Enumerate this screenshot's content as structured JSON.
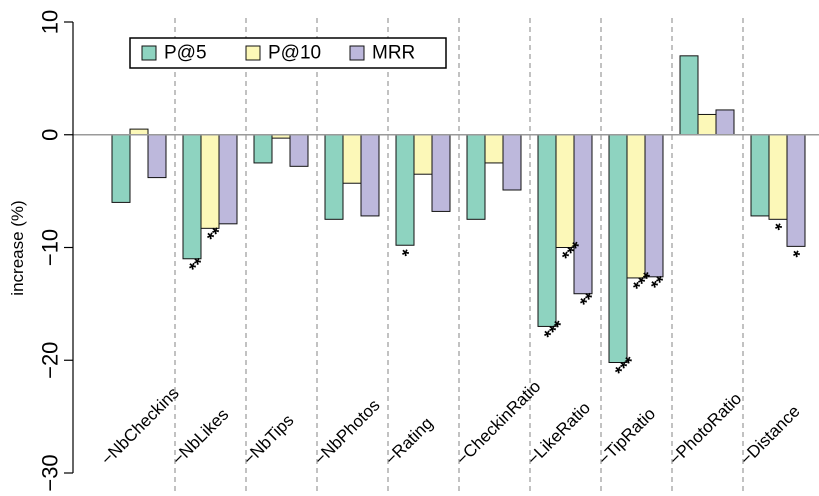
{
  "chart_data": {
    "type": "bar",
    "ylabel": "increase (%)",
    "ylim": [
      -30,
      10
    ],
    "yticks": [
      10,
      0,
      -10,
      -20,
      -30
    ],
    "categories": [
      "−NbCheckins",
      "−NbLikes",
      "−NbTips",
      "−NbPhotos",
      "−Rating",
      "−CheckinRatio",
      "−LikeRatio",
      "−TipRatio",
      "−PhotoRatio",
      "−Distance"
    ],
    "series": [
      {
        "name": "P@5",
        "color": "#8ed3c0",
        "values": [
          -6.0,
          -11.0,
          -2.5,
          -7.5,
          -9.8,
          -7.5,
          -17.0,
          -20.2,
          7.0,
          -7.2
        ],
        "significance": [
          "",
          "**",
          "",
          "",
          "*",
          "",
          "***",
          "***",
          "",
          ""
        ]
      },
      {
        "name": "P@10",
        "color": "#fcf8b8",
        "values": [
          0.5,
          -8.3,
          -0.3,
          -4.3,
          -3.5,
          -2.5,
          -10.0,
          -12.7,
          1.8,
          -7.5
        ],
        "significance": [
          "",
          "**",
          "",
          "",
          "",
          "",
          "***",
          "***",
          "",
          "*"
        ]
      },
      {
        "name": "MRR",
        "color": "#bdb8dc",
        "values": [
          -3.8,
          -7.9,
          -2.8,
          -7.2,
          -6.8,
          -4.9,
          -14.1,
          -12.6,
          2.2,
          -9.9
        ],
        "significance": [
          "",
          "",
          "",
          "",
          "",
          "",
          "**",
          "**",
          "",
          "*"
        ]
      }
    ],
    "legend_position": "top-left",
    "zero_line": true,
    "vertical_grid": "dashed"
  }
}
